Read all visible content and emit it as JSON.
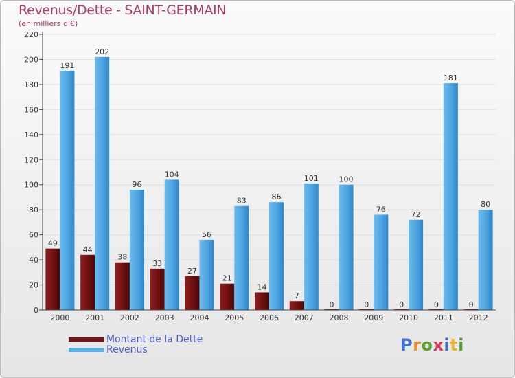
{
  "title": "Revenus/Dette - SAINT-GERMAIN",
  "subtitle": "(en milliers d'€)",
  "logo": {
    "letters": [
      "P",
      "r",
      "o",
      "x",
      "i",
      "t",
      "i"
    ],
    "colors": [
      "#3c6fcf",
      "#f08a2c",
      "#55a530",
      "#e0385a",
      "#3c6fcf",
      "#f0b02c",
      "#55a530"
    ]
  },
  "colors": {
    "dette": "#7a1515",
    "revenus": "#5aaee8"
  },
  "chart_data": {
    "type": "bar",
    "categories": [
      "2000",
      "2001",
      "2002",
      "2003",
      "2004",
      "2005",
      "2006",
      "2007",
      "2008",
      "2009",
      "2010",
      "2011",
      "2012"
    ],
    "series": [
      {
        "name": "Montant de la Dette",
        "values": [
          49,
          44,
          38,
          33,
          27,
          21,
          14,
          7,
          0,
          0,
          0,
          0,
          0
        ]
      },
      {
        "name": "Revenus",
        "values": [
          191,
          202,
          96,
          104,
          56,
          83,
          86,
          101,
          100,
          76,
          72,
          181,
          80
        ]
      }
    ],
    "ylim": [
      0,
      220
    ],
    "yticks": [
      0,
      20,
      40,
      60,
      80,
      100,
      120,
      140,
      160,
      180,
      200,
      220
    ],
    "legend_position": "bottom-left"
  }
}
